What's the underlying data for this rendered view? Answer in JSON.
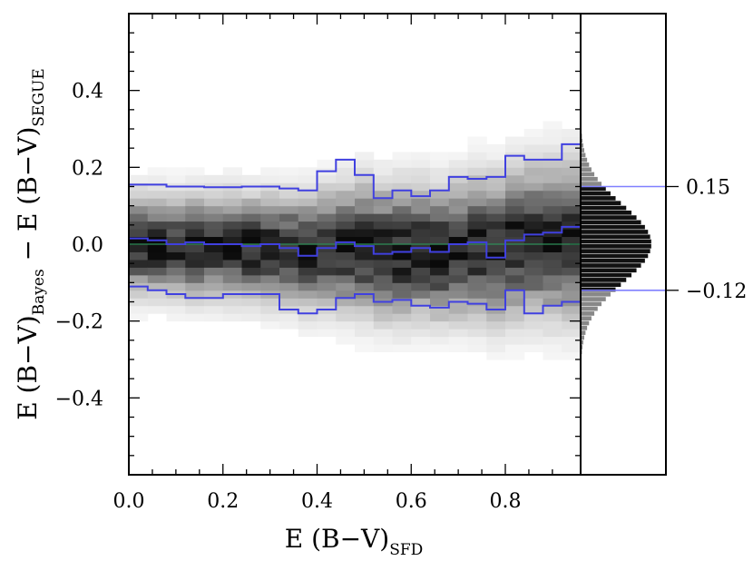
{
  "chart_data": {
    "type": "heatmap",
    "title": "",
    "xlabel": {
      "main": "E (B−V)",
      "sub": "SFD"
    },
    "ylabel": {
      "main_1": "E (B−V)",
      "sub_1": "Bayes",
      "minus": " − ",
      "main_2": "E (B−V)",
      "sub_2": "SEGUE"
    },
    "xlim": [
      0.0,
      0.96
    ],
    "ylim": [
      -0.6,
      0.6
    ],
    "x_ticks": [
      "0.0",
      "0.2",
      "0.4",
      "0.6",
      "0.8"
    ],
    "y_ticks": [
      "−0.4",
      "−0.2",
      "0.0",
      "0.2",
      "0.4"
    ],
    "x_tick_values": [
      0.0,
      0.2,
      0.4,
      0.6,
      0.8
    ],
    "y_tick_values": [
      -0.4,
      -0.2,
      0.0,
      0.2,
      0.4
    ],
    "x_bin_edges": [
      0.0,
      0.04,
      0.08,
      0.12,
      0.16,
      0.2,
      0.24,
      0.28,
      0.32,
      0.36,
      0.4,
      0.44,
      0.48,
      0.52,
      0.56,
      0.6,
      0.64,
      0.68,
      0.72,
      0.76,
      0.8,
      0.84,
      0.88,
      0.92,
      0.96
    ],
    "bin_spread": [
      0.075,
      0.075,
      0.076,
      0.077,
      0.078,
      0.079,
      0.08,
      0.081,
      0.082,
      0.086,
      0.09,
      0.095,
      0.1,
      0.1,
      0.102,
      0.1,
      0.1,
      0.102,
      0.108,
      0.11,
      0.112,
      0.115,
      0.118,
      0.12
    ],
    "bin_median": [
      0.0,
      0.0,
      -0.005,
      -0.005,
      -0.005,
      -0.005,
      -0.01,
      -0.01,
      -0.015,
      -0.02,
      -0.015,
      -0.01,
      -0.01,
      -0.02,
      -0.02,
      -0.015,
      -0.025,
      -0.015,
      -0.005,
      -0.015,
      0.0,
      0.01,
      0.01,
      0.01
    ],
    "series": [
      {
        "role": "upper percentile",
        "color": "#4040e0",
        "x": [
          0.0,
          0.04,
          0.08,
          0.12,
          0.16,
          0.2,
          0.24,
          0.28,
          0.32,
          0.36,
          0.4,
          0.44,
          0.48,
          0.52,
          0.56,
          0.6,
          0.64,
          0.68,
          0.72,
          0.76,
          0.8,
          0.84,
          0.88,
          0.92,
          0.96
        ],
        "y": [
          0.155,
          0.155,
          0.15,
          0.15,
          0.148,
          0.148,
          0.15,
          0.15,
          0.145,
          0.14,
          0.19,
          0.22,
          0.18,
          0.12,
          0.14,
          0.125,
          0.14,
          0.175,
          0.17,
          0.175,
          0.23,
          0.22,
          0.22,
          0.26,
          0.26
        ]
      },
      {
        "role": "median",
        "color": "#4040e0",
        "x": [
          0.0,
          0.04,
          0.08,
          0.12,
          0.16,
          0.2,
          0.24,
          0.28,
          0.32,
          0.36,
          0.4,
          0.44,
          0.48,
          0.52,
          0.56,
          0.6,
          0.64,
          0.68,
          0.72,
          0.76,
          0.8,
          0.84,
          0.88,
          0.92,
          0.96
        ],
        "y": [
          0.015,
          0.01,
          0.0,
          0.005,
          0.0,
          0.0,
          -0.005,
          0.0,
          -0.01,
          -0.03,
          -0.01,
          0.005,
          -0.005,
          -0.025,
          -0.02,
          -0.01,
          -0.02,
          0.0,
          0.005,
          -0.035,
          0.01,
          0.025,
          0.03,
          0.045,
          0.045
        ]
      },
      {
        "role": "lower percentile",
        "color": "#4040e0",
        "x": [
          0.0,
          0.04,
          0.08,
          0.12,
          0.16,
          0.2,
          0.24,
          0.28,
          0.32,
          0.36,
          0.4,
          0.44,
          0.48,
          0.52,
          0.56,
          0.6,
          0.64,
          0.68,
          0.72,
          0.76,
          0.8,
          0.84,
          0.88,
          0.92,
          0.96
        ],
        "y": [
          -0.11,
          -0.12,
          -0.13,
          -0.14,
          -0.14,
          -0.13,
          -0.13,
          -0.13,
          -0.17,
          -0.18,
          -0.17,
          -0.14,
          -0.13,
          -0.15,
          -0.145,
          -0.16,
          -0.165,
          -0.15,
          -0.155,
          -0.17,
          -0.12,
          -0.18,
          -0.16,
          -0.15,
          -0.15
        ]
      }
    ],
    "zero_line": {
      "y": 0.0,
      "color": "#2e8b57"
    },
    "marginal_histogram": {
      "orientation": "horizontal",
      "center": 0.0,
      "sigma": 0.1,
      "percentile_lines": [
        {
          "y": 0.15,
          "label": "0.15",
          "color": "#8080ff"
        },
        {
          "y": -0.12,
          "label": "−0.12",
          "color": "#8080ff"
        }
      ]
    },
    "grid": false,
    "legend": "none"
  }
}
